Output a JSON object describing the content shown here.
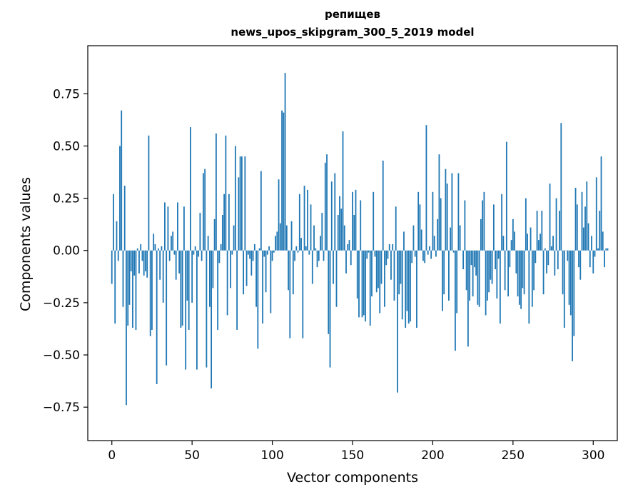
{
  "chart_data": {
    "type": "bar",
    "title": "репищев",
    "subtitle": "news_upos_skipgram_300_5_2019 model",
    "xlabel": "Vector components",
    "ylabel": "Components values",
    "xlim": [
      -15,
      315
    ],
    "ylim": [
      -0.91,
      0.98
    ],
    "xticks": [
      0,
      50,
      100,
      150,
      200,
      250,
      300
    ],
    "xtick_labels": [
      "0",
      "50",
      "100",
      "150",
      "200",
      "250",
      "300"
    ],
    "yticks": [
      -0.75,
      -0.5,
      -0.25,
      0.0,
      0.25,
      0.5,
      0.75
    ],
    "ytick_labels": [
      "−0.75",
      "−0.50",
      "−0.25",
      "0.00",
      "0.25",
      "0.50",
      "0.75"
    ],
    "bar_color": "#1f77b4",
    "values": [
      -0.16,
      0.27,
      -0.35,
      0.14,
      -0.05,
      0.5,
      0.67,
      -0.27,
      0.31,
      -0.74,
      -0.36,
      -0.26,
      -0.1,
      -0.37,
      -0.12,
      -0.38,
      0.01,
      -0.11,
      0.03,
      -0.05,
      -0.12,
      -0.1,
      -0.13,
      0.55,
      -0.41,
      -0.38,
      0.08,
      0.03,
      -0.64,
      0.01,
      -0.14,
      0.02,
      -0.25,
      0.23,
      -0.55,
      0.21,
      -0.05,
      0.07,
      0.09,
      -0.02,
      -0.14,
      0.23,
      -0.11,
      -0.37,
      -0.36,
      0.21,
      -0.57,
      -0.24,
      -0.38,
      0.59,
      -0.25,
      -0.02,
      0.02,
      -0.57,
      -0.03,
      0.18,
      -0.05,
      0.37,
      0.39,
      -0.56,
      0.07,
      -0.27,
      -0.66,
      -0.18,
      0.15,
      0.56,
      -0.38,
      -0.06,
      0.03,
      0.17,
      0.27,
      0.55,
      -0.31,
      0.27,
      -0.18,
      -0.02,
      0.12,
      0.5,
      -0.38,
      0.35,
      0.45,
      0.45,
      -0.21,
      0.45,
      -0.17,
      -0.02,
      -0.04,
      -0.12,
      -0.05,
      0.03,
      -0.27,
      -0.47,
      0.01,
      0.38,
      -0.35,
      -0.03,
      -0.2,
      -0.02,
      0.02,
      -0.3,
      -0.05,
      -0.01,
      0.07,
      0.09,
      0.34,
      0.13,
      0.67,
      0.66,
      0.85,
      0.12,
      -0.19,
      -0.42,
      0.14,
      -0.21,
      -0.05,
      0.02,
      -0.01,
      0.27,
      0.06,
      -0.42,
      0.31,
      0.02,
      0.29,
      -0.02,
      0.22,
      -0.16,
      0.12,
      0.01,
      -0.08,
      -0.05,
      0.07,
      0.18,
      -0.05,
      0.42,
      0.46,
      -0.4,
      -0.56,
      0.33,
      -0.16,
      0.37,
      -0.27,
      0.17,
      0.26,
      0.2,
      0.57,
      0.12,
      -0.11,
      0.03,
      0.05,
      -0.07,
      0.28,
      0.17,
      0.29,
      -0.23,
      -0.32,
      0.24,
      -0.32,
      -0.31,
      -0.34,
      -0.04,
      -0.01,
      -0.36,
      -0.22,
      0.28,
      -0.03,
      -0.2,
      -0.18,
      -0.3,
      -0.16,
      0.43,
      -0.27,
      -0.07,
      -0.04,
      0.03,
      -0.14,
      0.03,
      -0.24,
      0.21,
      -0.68,
      -0.21,
      -0.16,
      -0.33,
      0.09,
      -0.37,
      -0.29,
      -0.35,
      -0.34,
      -0.06,
      0.12,
      -0.03,
      -0.37,
      0.28,
      0.22,
      0.1,
      -0.05,
      -0.06,
      0.6,
      -0.02,
      0.02,
      -0.04,
      0.28,
      0.07,
      -0.03,
      0.15,
      0.46,
      0.25,
      -0.29,
      -0.21,
      0.39,
      0.32,
      -0.24,
      0.11,
      0.37,
      -0.01,
      -0.48,
      -0.3,
      0.37,
      0.12,
      0.0,
      -0.09,
      0.24,
      -0.19,
      -0.46,
      -0.24,
      -0.07,
      -0.22,
      -0.08,
      -0.12,
      -0.26,
      -0.27,
      0.15,
      0.24,
      0.28,
      -0.31,
      -0.24,
      -0.2,
      -0.14,
      -0.16,
      0.22,
      -0.09,
      -0.23,
      -0.04,
      -0.35,
      0.27,
      0.07,
      -0.19,
      0.52,
      -0.22,
      -0.08,
      0.05,
      0.15,
      0.09,
      -0.11,
      -0.22,
      -0.26,
      -0.28,
      -0.18,
      -0.21,
      0.25,
      0.08,
      -0.35,
      0.11,
      -0.27,
      -0.19,
      -0.06,
      0.19,
      0.05,
      0.08,
      0.19,
      -0.21,
      0.01,
      -0.11,
      -0.07,
      0.32,
      0.02,
      0.07,
      -0.12,
      0.25,
      -0.09,
      0.19,
      0.61,
      -0.21,
      -0.37,
      0.0,
      -0.05,
      -0.26,
      -0.31,
      -0.53,
      -0.41,
      0.3,
      0.22,
      -0.08,
      -0.14,
      0.28,
      0.11,
      0.21,
      0.33,
      0.13,
      -0.08,
      0.07,
      -0.11,
      -0.03,
      0.35,
      0.01,
      0.19,
      0.45,
      0.09,
      -0.08,
      0.01,
      0.01
    ]
  }
}
